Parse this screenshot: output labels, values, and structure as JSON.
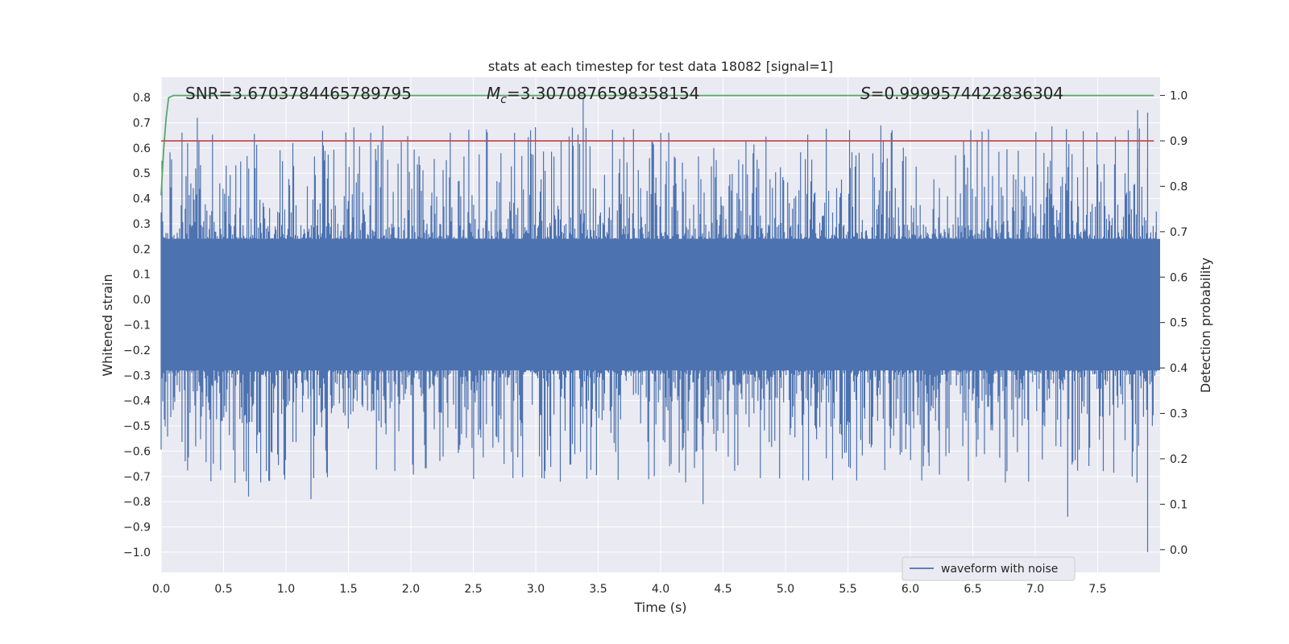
{
  "chart_data": {
    "type": "line",
    "title": "stats at each timestep for test data 18082 [signal=1]",
    "xlabel": "Time (s)",
    "ylabel": "Whitened strain",
    "ylabel_right": "Detection probability",
    "xlim": [
      0.0,
      8.0
    ],
    "ylim": [
      -1.08,
      0.88
    ],
    "ylim_right": [
      -0.05,
      1.04
    ],
    "x_ticks": [
      "0.0",
      "0.5",
      "1.0",
      "1.5",
      "2.0",
      "2.5",
      "3.0",
      "3.5",
      "4.0",
      "4.5",
      "5.0",
      "5.5",
      "6.0",
      "6.5",
      "7.0",
      "7.5"
    ],
    "y_ticks": [
      "0.8",
      "0.7",
      "0.6",
      "0.5",
      "0.4",
      "0.3",
      "0.2",
      "0.1",
      "0.0",
      "−0.1",
      "−0.2",
      "−0.3",
      "−0.4",
      "−0.5",
      "−0.6",
      "−0.7",
      "−0.8",
      "−0.9",
      "−1.0"
    ],
    "y_ticks_right": [
      "1.0",
      "0.9",
      "0.8",
      "0.7",
      "0.6",
      "0.5",
      "0.4",
      "0.3",
      "0.2",
      "0.1",
      "0.0"
    ],
    "grid": true,
    "legend_position": "lower-right",
    "annotations": {
      "snr": "SNR=3.6703784465789795",
      "mc_symbol": "M",
      "mc_sub": "c",
      "mc_value": "=3.3070876598358154",
      "s_symbol": "S",
      "s_value": "=0.9999574422836304"
    },
    "series": [
      {
        "name": "waveform with noise",
        "axis": "left",
        "color": "#4c72b0",
        "description": "dense noisy whitened strain, roughly -1.0 to 0.8",
        "peaks": [
          {
            "x": 3.38,
            "y": 0.8
          },
          {
            "x": 0.29,
            "y": 0.72
          },
          {
            "x": 7.82,
            "y": 0.75
          },
          {
            "x": 7.9,
            "y": 0.74
          },
          {
            "x": 7.9,
            "y": -1.0
          },
          {
            "x": 7.26,
            "y": -0.86
          },
          {
            "x": 4.34,
            "y": -0.81
          },
          {
            "x": 1.2,
            "y": -0.79
          },
          {
            "x": 0.7,
            "y": -0.78
          }
        ]
      },
      {
        "name": "",
        "axis": "right",
        "color": "#55a868",
        "x": [
          0.0,
          0.02,
          0.04,
          0.06,
          0.1,
          0.5,
          7.95
        ],
        "y": [
          0.78,
          0.88,
          0.95,
          0.995,
          1.0,
          1.0,
          1.0
        ]
      },
      {
        "name": "",
        "axis": "right",
        "color": "#c44e52",
        "x": [
          0.0,
          7.95
        ],
        "y": [
          0.9,
          0.9
        ]
      }
    ]
  }
}
